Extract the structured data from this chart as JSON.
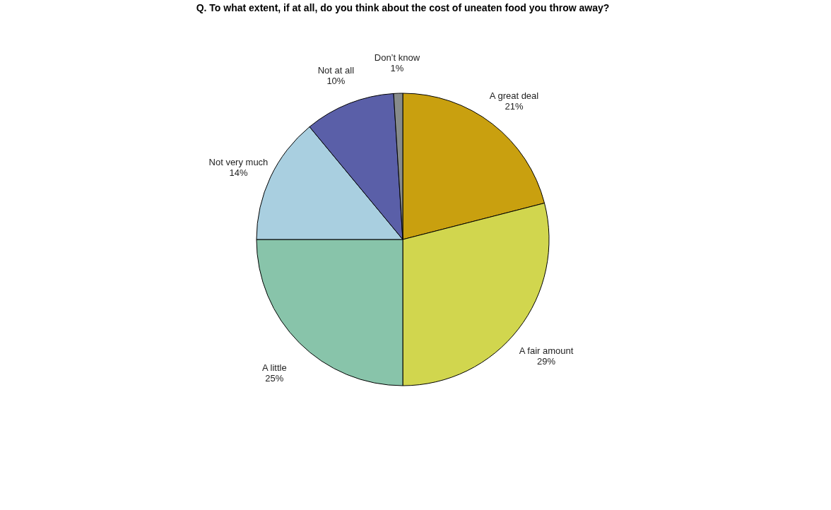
{
  "chart_data": {
    "type": "pie",
    "title": "Q. To what extent, if at all, do you think about the cost of uneaten food you throw away?",
    "categories": [
      "A great deal",
      "A fair amount",
      "A little",
      "Not very much",
      "Not at all",
      "Don’t know"
    ],
    "values": [
      21,
      29,
      25,
      14,
      10,
      1
    ],
    "colors": [
      "#c9a00f",
      "#d1d64e",
      "#88c4aa",
      "#a9cfe0",
      "#5a5fa8",
      "#878b8b"
    ],
    "value_labels": [
      "21%",
      "29%",
      "25%",
      "14%",
      "10%",
      "1%"
    ],
    "legend": false
  }
}
